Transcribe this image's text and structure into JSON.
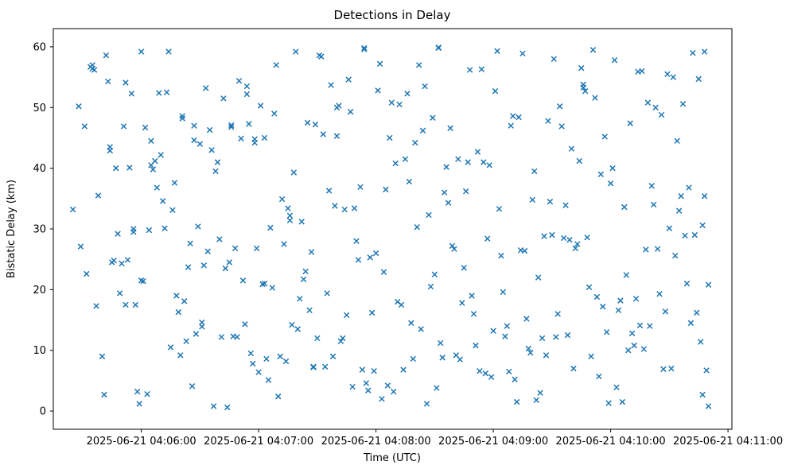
{
  "chart_data": {
    "type": "scatter",
    "title": "Detections in Delay",
    "xlabel": "Time (UTC)",
    "ylabel": "Bistatic Delay (km)",
    "marker": "x",
    "marker_color": "#1f77b4",
    "legend": "none",
    "grid": false,
    "x_axis": {
      "min": -45,
      "max": 302,
      "unit": "seconds relative to 2025-06-21 04:06:00 UTC",
      "ticks": [
        {
          "t": 0,
          "label": "2025-06-21 04:06:00"
        },
        {
          "t": 60,
          "label": "2025-06-21 04:07:00"
        },
        {
          "t": 120,
          "label": "2025-06-21 04:08:00"
        },
        {
          "t": 180,
          "label": "2025-06-21 04:09:00"
        },
        {
          "t": 240,
          "label": "2025-06-21 04:10:00"
        },
        {
          "t": 300,
          "label": "2025-06-21 04:11:00"
        }
      ]
    },
    "y_axis": {
      "min": -3,
      "max": 63,
      "ticks": [
        0,
        10,
        20,
        30,
        40,
        50,
        60
      ]
    },
    "points": [
      [
        -35,
        33.2
      ],
      [
        -32,
        50.2
      ],
      [
        -31,
        27.1
      ],
      [
        -29,
        46.9
      ],
      [
        -28,
        22.6
      ],
      [
        -26,
        56.7
      ],
      [
        -25,
        56.4
      ],
      [
        -25,
        57.0
      ],
      [
        -24,
        56.2
      ],
      [
        -23,
        17.3
      ],
      [
        -22,
        35.5
      ],
      [
        -20,
        9.0
      ],
      [
        -19,
        2.7
      ],
      [
        -18,
        58.6
      ],
      [
        -17,
        54.3
      ],
      [
        -16,
        43.5
      ],
      [
        -16,
        42.9
      ],
      [
        -15,
        24.5
      ],
      [
        -14,
        24.8
      ],
      [
        -13,
        40.0
      ],
      [
        -12,
        29.2
      ],
      [
        -11,
        19.4
      ],
      [
        -10,
        24.3
      ],
      [
        -9,
        46.9
      ],
      [
        -8,
        54.1
      ],
      [
        -8,
        17.5
      ],
      [
        -7,
        24.9
      ],
      [
        -6,
        40.1
      ],
      [
        -5,
        52.3
      ],
      [
        -4,
        30.0
      ],
      [
        -4,
        29.5
      ],
      [
        -3,
        17.5
      ],
      [
        -2,
        3.2
      ],
      [
        -1,
        1.2
      ],
      [
        0,
        59.2
      ],
      [
        0,
        21.5
      ],
      [
        1,
        21.4
      ],
      [
        2,
        46.7
      ],
      [
        3,
        2.8
      ],
      [
        4,
        29.8
      ],
      [
        5,
        40.5
      ],
      [
        5,
        44.5
      ],
      [
        6,
        39.8
      ],
      [
        7,
        41.2
      ],
      [
        8,
        36.8
      ],
      [
        9,
        52.4
      ],
      [
        10,
        42.2
      ],
      [
        11,
        34.6
      ],
      [
        12,
        30.1
      ],
      [
        13,
        52.5
      ],
      [
        14,
        59.2
      ],
      [
        15,
        10.5
      ],
      [
        16,
        33.1
      ],
      [
        17,
        37.6
      ],
      [
        18,
        19.0
      ],
      [
        19,
        16.3
      ],
      [
        20,
        9.2
      ],
      [
        21,
        48.2
      ],
      [
        21,
        48.6
      ],
      [
        22,
        18.1
      ],
      [
        23,
        11.5
      ],
      [
        24,
        23.7
      ],
      [
        25,
        27.6
      ],
      [
        26,
        4.1
      ],
      [
        27,
        47.0
      ],
      [
        27,
        44.6
      ],
      [
        28,
        12.7
      ],
      [
        29,
        30.4
      ],
      [
        30,
        44.0
      ],
      [
        31,
        14.6
      ],
      [
        31,
        13.9
      ],
      [
        32,
        24.0
      ],
      [
        33,
        53.2
      ],
      [
        34,
        26.3
      ],
      [
        35,
        46.3
      ],
      [
        36,
        43.0
      ],
      [
        37,
        0.8
      ],
      [
        38,
        39.5
      ],
      [
        39,
        41.0
      ],
      [
        40,
        28.3
      ],
      [
        41,
        12.2
      ],
      [
        42,
        51.5
      ],
      [
        43,
        23.5
      ],
      [
        44,
        0.6
      ],
      [
        45,
        24.5
      ],
      [
        46,
        46.8
      ],
      [
        46,
        47.1
      ],
      [
        47,
        12.3
      ],
      [
        48,
        26.8
      ],
      [
        49,
        12.2
      ],
      [
        50,
        54.4
      ],
      [
        51,
        44.9
      ],
      [
        52,
        21.5
      ],
      [
        53,
        14.3
      ],
      [
        54,
        53.5
      ],
      [
        54,
        52.2
      ],
      [
        55,
        47.3
      ],
      [
        56,
        9.5
      ],
      [
        57,
        7.8
      ],
      [
        58,
        44.8
      ],
      [
        58,
        44.2
      ],
      [
        59,
        26.8
      ],
      [
        60,
        6.4
      ],
      [
        61,
        50.3
      ],
      [
        62,
        20.9
      ],
      [
        63,
        45.0
      ],
      [
        63,
        21.0
      ],
      [
        64,
        8.6
      ],
      [
        65,
        5.1
      ],
      [
        66,
        30.2
      ],
      [
        67,
        20.3
      ],
      [
        68,
        49.0
      ],
      [
        69,
        57.0
      ],
      [
        70,
        2.4
      ],
      [
        71,
        9.0
      ],
      [
        72,
        34.9
      ],
      [
        73,
        27.5
      ],
      [
        74,
        8.2
      ],
      [
        75,
        33.4
      ],
      [
        76,
        32.2
      ],
      [
        76,
        31.4
      ],
      [
        77,
        14.2
      ],
      [
        78,
        39.3
      ],
      [
        79,
        59.2
      ],
      [
        80,
        13.5
      ],
      [
        81,
        18.5
      ],
      [
        82,
        31.2
      ],
      [
        83,
        21.7
      ],
      [
        84,
        23.0
      ],
      [
        85,
        47.5
      ],
      [
        86,
        16.6
      ],
      [
        87,
        26.2
      ],
      [
        88,
        7.2
      ],
      [
        88,
        7.3
      ],
      [
        89,
        47.2
      ],
      [
        90,
        12.0
      ],
      [
        91,
        58.6
      ],
      [
        92,
        58.4
      ],
      [
        93,
        45.6
      ],
      [
        94,
        7.3
      ],
      [
        95,
        19.4
      ],
      [
        96,
        36.3
      ],
      [
        97,
        53.7
      ],
      [
        98,
        9.0
      ],
      [
        99,
        33.8
      ],
      [
        100,
        45.3
      ],
      [
        100,
        50.0
      ],
      [
        101,
        50.3
      ],
      [
        102,
        11.5
      ],
      [
        103,
        12.0
      ],
      [
        104,
        33.2
      ],
      [
        105,
        15.8
      ],
      [
        106,
        54.6
      ],
      [
        107,
        49.3
      ],
      [
        108,
        4.0
      ],
      [
        109,
        33.4
      ],
      [
        110,
        28.0
      ],
      [
        111,
        24.9
      ],
      [
        112,
        36.9
      ],
      [
        113,
        6.8
      ],
      [
        114,
        59.6
      ],
      [
        114,
        59.8
      ],
      [
        115,
        4.6
      ],
      [
        116,
        3.4
      ],
      [
        117,
        25.3
      ],
      [
        118,
        16.2
      ],
      [
        119,
        6.6
      ],
      [
        120,
        26.0
      ],
      [
        121,
        52.8
      ],
      [
        122,
        57.2
      ],
      [
        123,
        2.0
      ],
      [
        124,
        22.9
      ],
      [
        125,
        36.5
      ],
      [
        126,
        4.2
      ],
      [
        127,
        45.0
      ],
      [
        128,
        50.8
      ],
      [
        129,
        3.2
      ],
      [
        130,
        40.8
      ],
      [
        131,
        18.0
      ],
      [
        132,
        50.5
      ],
      [
        133,
        17.5
      ],
      [
        134,
        6.8
      ],
      [
        135,
        41.5
      ],
      [
        136,
        52.3
      ],
      [
        137,
        37.8
      ],
      [
        138,
        14.5
      ],
      [
        139,
        8.6
      ],
      [
        140,
        44.2
      ],
      [
        141,
        30.3
      ],
      [
        142,
        57.0
      ],
      [
        143,
        13.5
      ],
      [
        144,
        46.2
      ],
      [
        145,
        53.5
      ],
      [
        146,
        1.2
      ],
      [
        147,
        32.3
      ],
      [
        148,
        20.5
      ],
      [
        149,
        48.3
      ],
      [
        150,
        22.5
      ],
      [
        151,
        3.8
      ],
      [
        152,
        59.8
      ],
      [
        152,
        59.9
      ],
      [
        153,
        11.2
      ],
      [
        154,
        8.8
      ],
      [
        155,
        36.0
      ],
      [
        156,
        40.2
      ],
      [
        157,
        34.3
      ],
      [
        158,
        46.6
      ],
      [
        159,
        27.2
      ],
      [
        160,
        26.7
      ],
      [
        161,
        9.2
      ],
      [
        162,
        41.5
      ],
      [
        163,
        8.5
      ],
      [
        164,
        17.8
      ],
      [
        165,
        23.6
      ],
      [
        166,
        36.2
      ],
      [
        167,
        41.0
      ],
      [
        168,
        56.2
      ],
      [
        169,
        19.0
      ],
      [
        170,
        16.0
      ],
      [
        171,
        10.8
      ],
      [
        172,
        42.7
      ],
      [
        173,
        6.6
      ],
      [
        174,
        56.3
      ],
      [
        175,
        41.0
      ],
      [
        176,
        6.2
      ],
      [
        177,
        28.4
      ],
      [
        178,
        40.5
      ],
      [
        179,
        5.6
      ],
      [
        180,
        13.2
      ],
      [
        181,
        52.7
      ],
      [
        182,
        59.3
      ],
      [
        183,
        33.3
      ],
      [
        184,
        25.6
      ],
      [
        185,
        19.6
      ],
      [
        186,
        12.3
      ],
      [
        187,
        14.0
      ],
      [
        188,
        6.5
      ],
      [
        189,
        47.0
      ],
      [
        190,
        48.6
      ],
      [
        191,
        5.2
      ],
      [
        192,
        1.5
      ],
      [
        193,
        48.4
      ],
      [
        194,
        26.5
      ],
      [
        195,
        58.9
      ],
      [
        196,
        26.4
      ],
      [
        197,
        15.2
      ],
      [
        198,
        10.3
      ],
      [
        199,
        9.6
      ],
      [
        200,
        34.8
      ],
      [
        201,
        39.5
      ],
      [
        202,
        1.8
      ],
      [
        203,
        22.0
      ],
      [
        204,
        3.0
      ],
      [
        205,
        12.0
      ],
      [
        206,
        28.8
      ],
      [
        207,
        9.2
      ],
      [
        208,
        47.8
      ],
      [
        209,
        34.5
      ],
      [
        210,
        29.0
      ],
      [
        211,
        58.0
      ],
      [
        212,
        12.2
      ],
      [
        213,
        16.0
      ],
      [
        214,
        50.2
      ],
      [
        215,
        46.9
      ],
      [
        216,
        28.5
      ],
      [
        217,
        33.9
      ],
      [
        218,
        12.5
      ],
      [
        219,
        28.2
      ],
      [
        220,
        43.2
      ],
      [
        221,
        7.0
      ],
      [
        222,
        26.8
      ],
      [
        223,
        27.5
      ],
      [
        224,
        41.2
      ],
      [
        225,
        56.5
      ],
      [
        226,
        53.8
      ],
      [
        226,
        53.3
      ],
      [
        227,
        52.7
      ],
      [
        228,
        28.6
      ],
      [
        229,
        20.4
      ],
      [
        230,
        9.0
      ],
      [
        231,
        59.5
      ],
      [
        232,
        51.6
      ],
      [
        233,
        18.8
      ],
      [
        234,
        5.7
      ],
      [
        235,
        39.0
      ],
      [
        236,
        17.2
      ],
      [
        237,
        45.2
      ],
      [
        238,
        13.0
      ],
      [
        239,
        1.3
      ],
      [
        240,
        37.5
      ],
      [
        241,
        40.0
      ],
      [
        242,
        57.8
      ],
      [
        243,
        3.9
      ],
      [
        244,
        16.6
      ],
      [
        245,
        18.2
      ],
      [
        246,
        1.5
      ],
      [
        247,
        33.6
      ],
      [
        248,
        22.4
      ],
      [
        249,
        10.0
      ],
      [
        250,
        47.4
      ],
      [
        251,
        12.8
      ],
      [
        252,
        10.8
      ],
      [
        253,
        18.5
      ],
      [
        254,
        55.9
      ],
      [
        255,
        14.1
      ],
      [
        256,
        56.0
      ],
      [
        257,
        10.2
      ],
      [
        258,
        26.6
      ],
      [
        259,
        50.8
      ],
      [
        260,
        14.0
      ],
      [
        261,
        37.1
      ],
      [
        262,
        34.0
      ],
      [
        263,
        50.0
      ],
      [
        264,
        26.7
      ],
      [
        265,
        19.3
      ],
      [
        266,
        48.8
      ],
      [
        267,
        6.9
      ],
      [
        268,
        16.4
      ],
      [
        269,
        55.5
      ],
      [
        270,
        30.1
      ],
      [
        271,
        7.0
      ],
      [
        272,
        55.0
      ],
      [
        273,
        25.6
      ],
      [
        274,
        44.5
      ],
      [
        275,
        33.0
      ],
      [
        276,
        35.4
      ],
      [
        277,
        50.6
      ],
      [
        278,
        28.9
      ],
      [
        279,
        21.0
      ],
      [
        280,
        36.8
      ],
      [
        281,
        14.5
      ],
      [
        282,
        59.0
      ],
      [
        283,
        29.0
      ],
      [
        284,
        16.2
      ],
      [
        285,
        54.7
      ],
      [
        286,
        11.4
      ],
      [
        287,
        30.6
      ],
      [
        287,
        2.7
      ],
      [
        288,
        59.2
      ],
      [
        288,
        35.4
      ],
      [
        289,
        6.7
      ],
      [
        290,
        20.8
      ],
      [
        290,
        0.8
      ]
    ]
  }
}
